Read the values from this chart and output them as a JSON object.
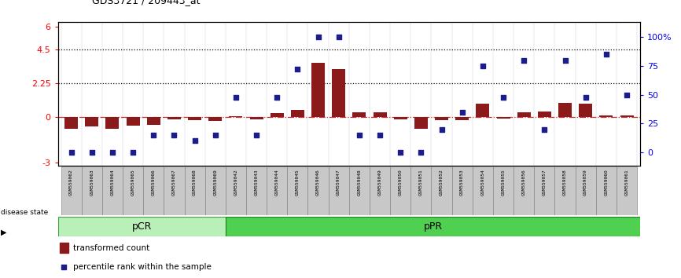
{
  "title": "GDS3721 / 209443_at",
  "samples": [
    "GSM559062",
    "GSM559063",
    "GSM559064",
    "GSM559065",
    "GSM559066",
    "GSM559067",
    "GSM559068",
    "GSM559069",
    "GSM559042",
    "GSM559043",
    "GSM559044",
    "GSM559045",
    "GSM559046",
    "GSM559047",
    "GSM559048",
    "GSM559049",
    "GSM559050",
    "GSM559051",
    "GSM559052",
    "GSM559053",
    "GSM559054",
    "GSM559055",
    "GSM559056",
    "GSM559057",
    "GSM559058",
    "GSM559059",
    "GSM559060",
    "GSM559061"
  ],
  "transformed_count": [
    -0.75,
    -0.6,
    -0.75,
    -0.55,
    -0.5,
    -0.15,
    -0.2,
    -0.25,
    0.05,
    -0.15,
    0.25,
    0.5,
    3.6,
    3.2,
    0.35,
    0.3,
    -0.15,
    -0.75,
    -0.22,
    -0.18,
    0.9,
    -0.08,
    0.3,
    0.4,
    0.95,
    0.9,
    0.12,
    0.12
  ],
  "percentile_rank": [
    0,
    0,
    0,
    0,
    15,
    15,
    10,
    15,
    48,
    15,
    48,
    72,
    100,
    100,
    15,
    15,
    0,
    0,
    20,
    35,
    75,
    48,
    80,
    20,
    80,
    48,
    85,
    50
  ],
  "disease_state_groups": [
    {
      "label": "pCR",
      "start": 0,
      "end": 8
    },
    {
      "label": "pPR",
      "start": 8,
      "end": 28
    }
  ],
  "ylim_left": [
    -3.2,
    6.3
  ],
  "ylim_right": [
    -11.4,
    112.9
  ],
  "yticks_left": [
    -3,
    0,
    2.25,
    4.5,
    6
  ],
  "yticks_right": [
    0,
    25,
    50,
    75,
    100
  ],
  "ytick_labels_left": [
    "-3",
    "0",
    "2.25",
    "4.5",
    "6"
  ],
  "ytick_labels_right": [
    "0",
    "25",
    "50",
    "75",
    "100%"
  ],
  "hlines": [
    4.5,
    2.25
  ],
  "bar_color": "#8B1A1A",
  "scatter_color": "#1C1C8B",
  "zero_line_color": "#cc3333",
  "label_bg": "#c8c8c8",
  "pCR_color": "#b8f0b8",
  "pPR_color": "#50d050",
  "pCR_border": "#40a040",
  "pPR_border": "#208020",
  "label_transformed": "transformed count",
  "label_percentile": "percentile rank within the sample",
  "n_samples": 28,
  "n_pcr": 8
}
